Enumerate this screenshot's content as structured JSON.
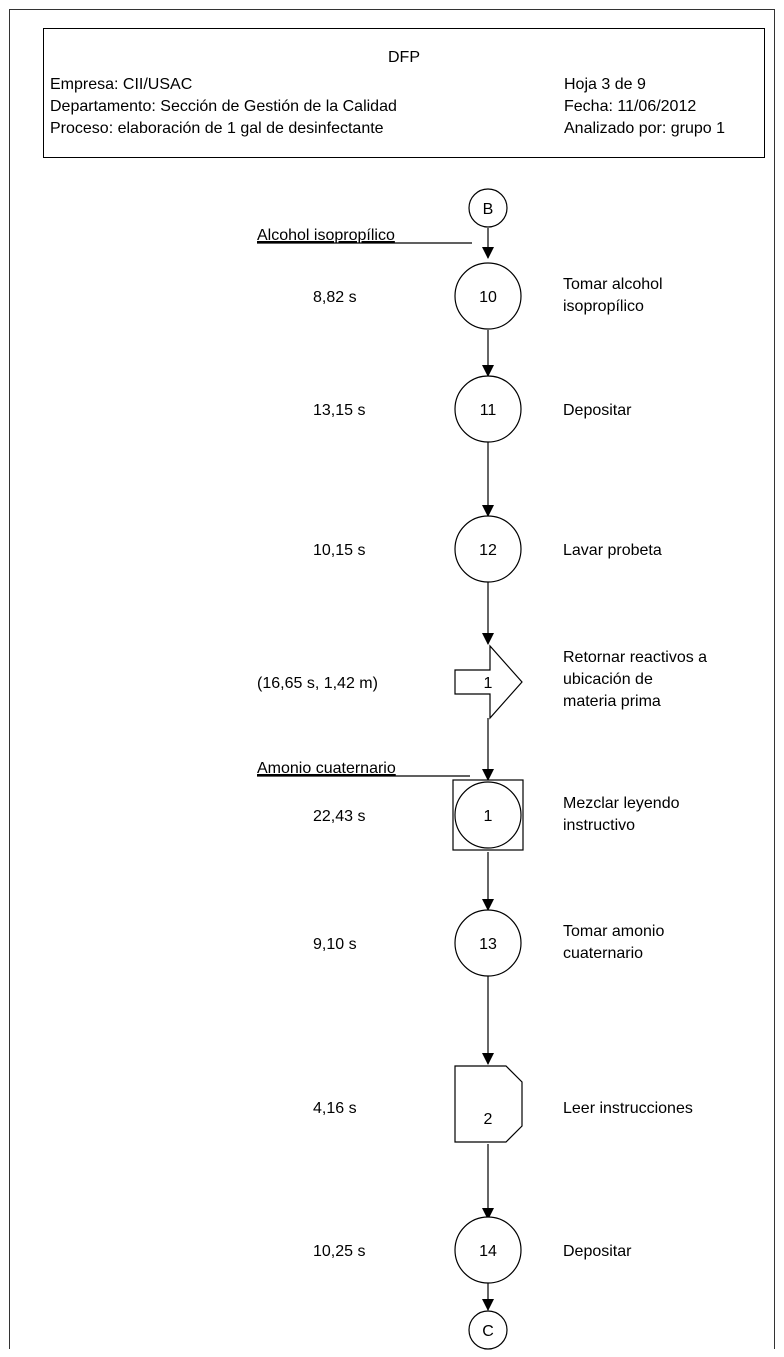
{
  "header": {
    "title": "DFP",
    "company": "Empresa: CII/USAC",
    "department": "Departamento: Sección de Gestión de la Calidad",
    "process": "Proceso: elaboración de 1 gal de desinfectante",
    "sheet": "Hoja 3 de 9",
    "date": "Fecha: 11/06/2012",
    "analyst": "Analizado por: grupo 1"
  },
  "diagram": {
    "start_connector": "B",
    "end_connector": "C",
    "materials": [
      {
        "label": "Alcohol isopropílico"
      },
      {
        "label": "Amonio cuaternario"
      }
    ],
    "steps": [
      {
        "symbol": "operation",
        "number": "10",
        "time": "8,82 s",
        "description": [
          "Tomar alcohol",
          "isopropílico"
        ]
      },
      {
        "symbol": "operation",
        "number": "11",
        "time": "13,15 s",
        "description": [
          "Depositar"
        ]
      },
      {
        "symbol": "operation",
        "number": "12",
        "time": "10,15 s",
        "description": [
          "Lavar probeta"
        ]
      },
      {
        "symbol": "transport",
        "number": "1",
        "time": "(16,65 s, 1,42 m)",
        "description": [
          "Retornar reactivos a",
          "ubicación de",
          "materia prima"
        ]
      },
      {
        "symbol": "combined",
        "number": "1",
        "time": "22,43 s",
        "description": [
          "Mezclar leyendo",
          "instructivo"
        ]
      },
      {
        "symbol": "operation",
        "number": "13",
        "time": "9,10 s",
        "description": [
          "Tomar amonio",
          "cuaternario"
        ]
      },
      {
        "symbol": "delay",
        "number": "2",
        "time": "4,16 s",
        "description": [
          "Leer instrucciones"
        ]
      },
      {
        "symbol": "operation",
        "number": "14",
        "time": "10,25 s",
        "description": [
          "Depositar"
        ]
      }
    ]
  }
}
